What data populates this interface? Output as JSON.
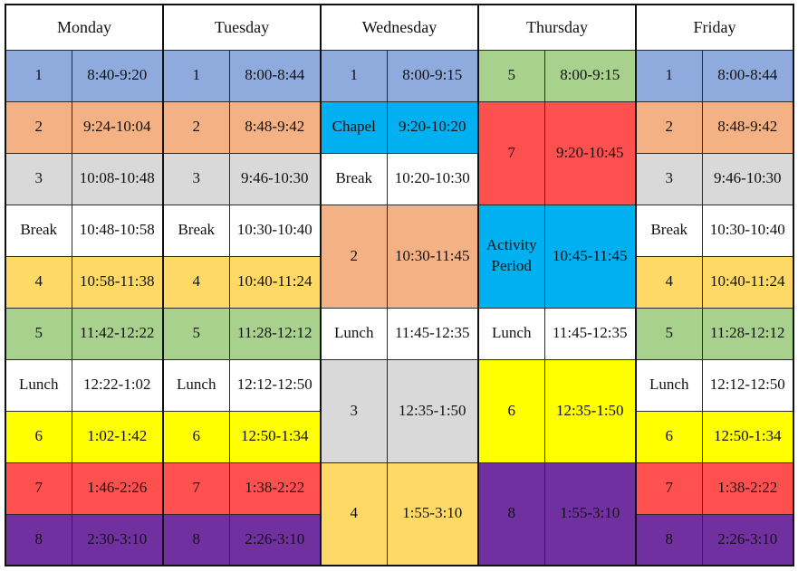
{
  "colors": {
    "blue": "#8FAADC",
    "orange": "#F4B183",
    "gray": "#D9D9D9",
    "white": "#FFFFFF",
    "gold": "#FFD966",
    "green": "#A9D18E",
    "yellow": "#FFFF00",
    "red": "#FF5050",
    "purple": "#7030A0",
    "cyan": "#00B0F0"
  },
  "days": [
    {
      "name": "Monday",
      "blocks": [
        {
          "label": "1",
          "time": "8:40-9:20",
          "color": "blue",
          "span": 1
        },
        {
          "label": "2",
          "time": "9:24-10:04",
          "color": "orange",
          "span": 1
        },
        {
          "label": "3",
          "time": "10:08-10:48",
          "color": "gray",
          "span": 1
        },
        {
          "label": "Break",
          "time": "10:48-10:58",
          "color": "white",
          "span": 1
        },
        {
          "label": "4",
          "time": "10:58-11:38",
          "color": "gold",
          "span": 1
        },
        {
          "label": "5",
          "time": "11:42-12:22",
          "color": "green",
          "span": 1
        },
        {
          "label": "Lunch",
          "time": "12:22-1:02",
          "color": "white",
          "span": 1
        },
        {
          "label": "6",
          "time": "1:02-1:42",
          "color": "yellow",
          "span": 1
        },
        {
          "label": "7",
          "time": "1:46-2:26",
          "color": "red",
          "span": 1
        },
        {
          "label": "8",
          "time": "2:30-3:10",
          "color": "purple",
          "span": 1
        }
      ]
    },
    {
      "name": "Tuesday",
      "blocks": [
        {
          "label": "1",
          "time": "8:00-8:44",
          "color": "blue",
          "span": 1
        },
        {
          "label": "2",
          "time": "8:48-9:42",
          "color": "orange",
          "span": 1
        },
        {
          "label": "3",
          "time": "9:46-10:30",
          "color": "gray",
          "span": 1
        },
        {
          "label": "Break",
          "time": "10:30-10:40",
          "color": "white",
          "span": 1
        },
        {
          "label": "4",
          "time": "10:40-11:24",
          "color": "gold",
          "span": 1
        },
        {
          "label": "5",
          "time": "11:28-12:12",
          "color": "green",
          "span": 1
        },
        {
          "label": "Lunch",
          "time": "12:12-12:50",
          "color": "white",
          "span": 1
        },
        {
          "label": "6",
          "time": "12:50-1:34",
          "color": "yellow",
          "span": 1
        },
        {
          "label": "7",
          "time": "1:38-2:22",
          "color": "red",
          "span": 1
        },
        {
          "label": "8",
          "time": "2:26-3:10",
          "color": "purple",
          "span": 1
        }
      ]
    },
    {
      "name": "Wednesday",
      "blocks": [
        {
          "label": "1",
          "time": "8:00-9:15",
          "color": "blue",
          "span": 1
        },
        {
          "label": "Chapel",
          "time": "9:20-10:20",
          "color": "cyan",
          "span": 1
        },
        {
          "label": "Break",
          "time": "10:20-10:30",
          "color": "white",
          "span": 1
        },
        {
          "label": "2",
          "time": "10:30-11:45",
          "color": "orange",
          "span": 2
        },
        {
          "label": "Lunch",
          "time": "11:45-12:35",
          "color": "white",
          "span": 1
        },
        {
          "label": "3",
          "time": "12:35-1:50",
          "color": "gray",
          "span": 2
        },
        {
          "label": "4",
          "time": "1:55-3:10",
          "color": "gold",
          "span": 2
        }
      ]
    },
    {
      "name": "Thursday",
      "blocks": [
        {
          "label": "5",
          "time": "8:00-9:15",
          "color": "green",
          "span": 1
        },
        {
          "label": "7",
          "time": "9:20-10:45",
          "color": "red",
          "span": 2
        },
        {
          "label": "Activity Period",
          "time": "10:45-11:45",
          "color": "cyan",
          "span": 2
        },
        {
          "label": "Lunch",
          "time": "11:45-12:35",
          "color": "white",
          "span": 1
        },
        {
          "label": "6",
          "time": "12:35-1:50",
          "color": "yellow",
          "span": 2
        },
        {
          "label": "8",
          "time": "1:55-3:10",
          "color": "purple",
          "span": 2
        }
      ]
    },
    {
      "name": "Friday",
      "blocks": [
        {
          "label": "1",
          "time": "8:00-8:44",
          "color": "blue",
          "span": 1
        },
        {
          "label": "2",
          "time": "8:48-9:42",
          "color": "orange",
          "span": 1
        },
        {
          "label": "3",
          "time": "9:46-10:30",
          "color": "gray",
          "span": 1
        },
        {
          "label": "Break",
          "time": "10:30-10:40",
          "color": "white",
          "span": 1
        },
        {
          "label": "4",
          "time": "10:40-11:24",
          "color": "gold",
          "span": 1
        },
        {
          "label": "5",
          "time": "11:28-12:12",
          "color": "green",
          "span": 1
        },
        {
          "label": "Lunch",
          "time": "12:12-12:50",
          "color": "white",
          "span": 1
        },
        {
          "label": "6",
          "time": "12:50-1:34",
          "color": "yellow",
          "span": 1
        },
        {
          "label": "7",
          "time": "1:38-2:22",
          "color": "red",
          "span": 1
        },
        {
          "label": "8",
          "time": "2:26-3:10",
          "color": "purple",
          "span": 1
        }
      ]
    }
  ]
}
